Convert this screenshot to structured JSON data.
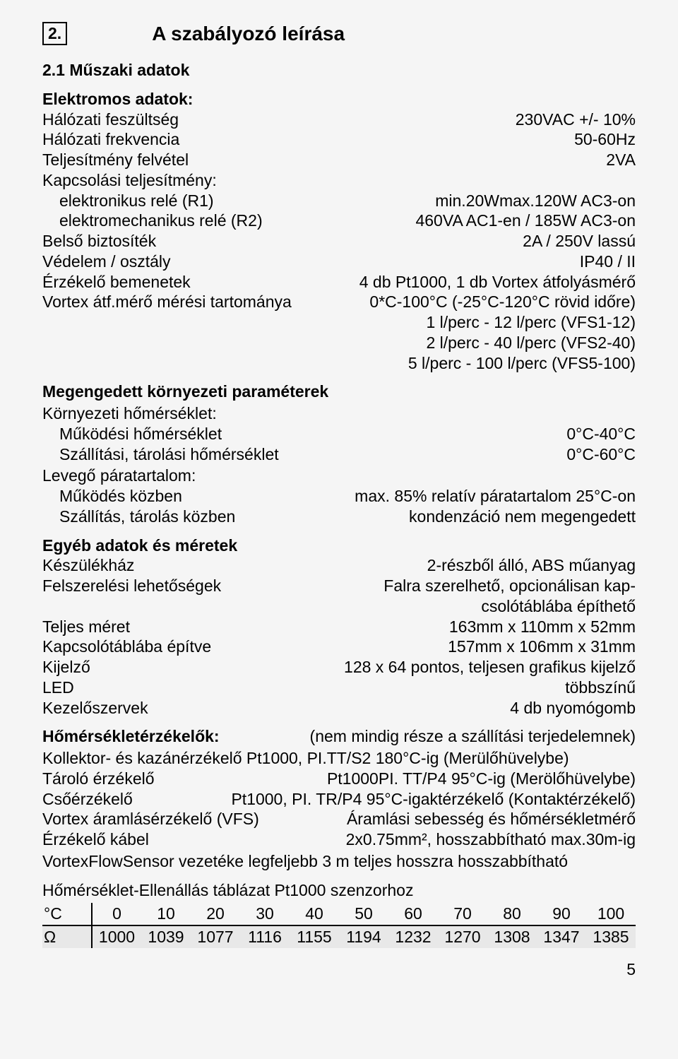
{
  "header": {
    "section_number": "2.",
    "section_title": "A szabályozó leírása"
  },
  "tech": {
    "title": "2.1 Műszaki adatok",
    "electrical_title": "Elektromos adatok:",
    "rows": {
      "mains_voltage": {
        "label": "Hálózati feszültség",
        "value": "230VAC +/- 10%"
      },
      "mains_freq": {
        "label": "Hálózati frekvencia",
        "value": "50-60Hz"
      },
      "power_input": {
        "label": "Teljesítmény felvétel",
        "value": "2VA"
      },
      "switching_cap": {
        "label": "Kapcsolási teljesítmény:",
        "value": ""
      },
      "relay_r1": {
        "label": "elektronikus relé (R1)",
        "value": "min.20Wmax.120W AC3-on"
      },
      "relay_r2": {
        "label": "elektromechanikus relé (R2)",
        "value": "460VA AC1-en / 185W AC3-on"
      },
      "fuse": {
        "label": "Belső biztosíték",
        "value": "2A / 250V lassú"
      },
      "protection": {
        "label": "Védelem / osztály",
        "value": "IP40 / II"
      },
      "sensor_inputs": {
        "label": "Érzékelő bemenetek",
        "value": "4 db Pt1000, 1 db Vortex átfolyásmérő"
      },
      "vortex_range": {
        "label": "Vortex átf.mérő mérési tartománya",
        "value": "0*C-100°C (-25°C-120°C rövid időre)"
      },
      "vortex_l1": "1 l/perc - 12 l/perc (VFS1-12)",
      "vortex_l2": "2 l/perc - 40 l/perc (VFS2-40)",
      "vortex_l3": "5 l/perc - 100 l/perc (VFS5-100)"
    },
    "env_title": "Megengedett környezeti paraméterek",
    "env": {
      "amb_temp": "Környezeti hőmérséklet:",
      "op_temp": {
        "label": "Működési hőmérséklet",
        "value": "0°C-40°C"
      },
      "store_temp": {
        "label": "Szállítási, tárolási hőmérséklet",
        "value": "0°C-60°C"
      },
      "humidity": "Levegő páratartalom:",
      "op_hum": {
        "label": "Működés közben",
        "value": "max. 85% relatív páratartalom 25°C-on"
      },
      "store_hum": {
        "label": "Szállítás, tárolás közben",
        "value": "kondenzáció nem megengedett"
      }
    },
    "other_title": "Egyéb adatok és méretek",
    "other": {
      "housing": {
        "label": "Készülékház",
        "value": "2-részből álló, ABS műanyag"
      },
      "mounting": {
        "label": "Felszerelési lehetőségek",
        "value": "Falra szerelhető, opcionálisan kap-"
      },
      "mounting2": "csolótáblába építhető",
      "dim": {
        "label": "Teljes méret",
        "value": "163mm x 110mm x 52mm"
      },
      "dim2": {
        "label": "Kapcsolótáblába építve",
        "value": "157mm x 106mm x 31mm"
      },
      "display": {
        "label": "Kijelző",
        "value": "128 x 64 pontos, teljesen grafikus kijelző"
      },
      "led": {
        "label": "LED",
        "value": "többszínű"
      },
      "controls": {
        "label": "Kezelőszervek",
        "value": "4 db nyomógomb"
      }
    },
    "sensors_title": "Hőmérsékletérzékelők:",
    "sensors_note": "(nem mindig része a szállítási terjedelemnek)",
    "sensors": {
      "l1": "Kollektor- és kazánérzékelő Pt1000, PI.TT/S2 180°C-ig (Merülőhüvelybe)",
      "l2a": "Tároló érzékelő",
      "l2b": "Pt1000PI. TT/P4 95°C-ig (Merölőhüvelybe)",
      "l3a": "Csőérzékelő",
      "l3b": "Pt1000, PI. TR/P4 95°C-igaktérzékelő (Kontaktérzékelő)",
      "l4a": "Vortex áramlásérzékelő (VFS)",
      "l4b": "Áramlási sebesség és hőmérsékletmérő",
      "l5a": "Érzékelő kábel",
      "l5b": "2x0.75mm², hosszabbítható max.30m-ig",
      "l6": "VortexFlowSensor vezetéke legfeljebb 3 m teljes hosszra hosszabbítható"
    },
    "table_title": "Hőmérséklet-Ellenállás táblázat Pt1000 szenzorhoz",
    "table": {
      "unit_c": "°C",
      "unit_o": "Ω",
      "c": [
        "0",
        "10",
        "20",
        "30",
        "40",
        "50",
        "60",
        "70",
        "80",
        "90",
        "100"
      ],
      "o": [
        "1000",
        "1039",
        "1077",
        "1116",
        "1155",
        "1194",
        "1232",
        "1270",
        "1308",
        "1347",
        "1385"
      ]
    }
  },
  "page_number": "5"
}
